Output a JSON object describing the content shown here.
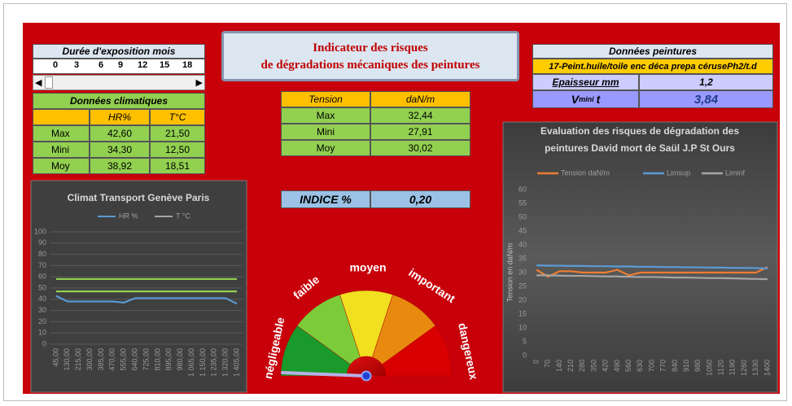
{
  "exposure": {
    "title": "Durée d'exposition mois",
    "ticks": [
      0,
      3,
      6,
      9,
      12,
      15,
      18
    ]
  },
  "climate": {
    "title": "Données climatiques",
    "headers": [
      "HR%",
      "T°C"
    ],
    "rows": [
      [
        "Max",
        "42,60",
        "21,50"
      ],
      [
        "Mini",
        "34,30",
        "12,50"
      ],
      [
        "Moy",
        "38,92",
        "18,51"
      ]
    ]
  },
  "header": {
    "line1": "Indicateur des risques",
    "line2": "de dégradations mécaniques des peintures"
  },
  "tension": {
    "headers": [
      "Tension",
      "daN/m"
    ],
    "rows": [
      [
        "Max",
        "32,44"
      ],
      [
        "Mini",
        "27,91"
      ],
      [
        "Moy",
        "30,02"
      ]
    ]
  },
  "indice": {
    "label": "INDICE %",
    "value": "0,20"
  },
  "gauge": {
    "labels": [
      "négligeable",
      "faible",
      "moyen",
      "important",
      "dangereux"
    ]
  },
  "paint": {
    "title": "Données peintures",
    "name": "17-Peint.huile/toile enc déca prepa cérusePh2/t.d",
    "thickness_label": "Epaisseur mm",
    "thickness": "1,2",
    "v_symbol": "V",
    "v_subscript": "mini",
    "v_suffix": "t",
    "v_value": "3,84"
  },
  "climate_chart": {
    "type": "line",
    "title": "Climat Transport Genève Paris",
    "categories": [
      "45,00",
      "130,00",
      "215,00",
      "300,00",
      "385,00",
      "470,00",
      "555,00",
      "640,00",
      "725,00",
      "810,00",
      "895,00",
      "980,00",
      "1 065,00",
      "1 150,00",
      "1 235,00",
      "1 320,00",
      "1 405,00"
    ],
    "series": [
      {
        "name": "HR %",
        "color": "#5b9bd5",
        "values": [
          43,
          38,
          38,
          38,
          38,
          38,
          37,
          41,
          41,
          41,
          41,
          41,
          41,
          41,
          41,
          41,
          36
        ]
      },
      {
        "name": "T °C",
        "color": "#a5a5a5",
        "values": [
          null,
          null,
          null,
          null,
          null,
          null,
          null,
          null,
          null,
          null,
          null,
          null,
          null,
          null,
          null,
          null,
          null
        ]
      },
      {
        "color": "#92d050",
        "values": [
          58,
          58,
          58,
          58,
          58,
          58,
          58,
          58,
          58,
          58,
          58,
          58,
          58,
          58,
          58,
          58,
          58
        ]
      },
      {
        "color": "#92d050",
        "values": [
          47,
          47,
          47,
          47,
          47,
          47,
          47,
          47,
          47,
          47,
          47,
          47,
          47,
          47,
          47,
          47,
          47
        ]
      }
    ],
    "ylim": [
      0,
      100
    ],
    "yticks": [
      0,
      10,
      20,
      30,
      40,
      50,
      60,
      70,
      80,
      90,
      100
    ],
    "grid": true
  },
  "tension_chart": {
    "type": "line",
    "title": [
      "Evaluation des risques de dégradation des",
      "peintures David mort de Saül J.P St Ours"
    ],
    "y_label": "Tension en daN/m",
    "categories": [
      0,
      70,
      140,
      210,
      280,
      350,
      420,
      490,
      560,
      630,
      700,
      770,
      840,
      910,
      980,
      1050,
      1120,
      1190,
      1260,
      1330,
      1400
    ],
    "series": [
      {
        "name": "Tension daN/m",
        "color": "#ed7d31",
        "values": [
          31,
          28.5,
          30.5,
          30.5,
          30,
          30,
          30,
          31,
          29,
          30,
          30,
          30,
          30,
          30,
          30,
          30,
          30,
          30,
          30,
          30,
          32
        ]
      },
      {
        "name": "Limsup",
        "color": "#5b9bd5",
        "values": [
          32.6,
          32.5,
          32.5,
          32.4,
          32.4,
          32.3,
          32.3,
          32.2,
          32.2,
          32.1,
          32.1,
          32,
          32,
          31.9,
          31.9,
          31.8,
          31.8,
          31.7,
          31.7,
          31.6,
          31.5
        ]
      },
      {
        "name": "Liminf",
        "color": "#a5a5a5",
        "values": [
          29,
          29,
          28.9,
          28.8,
          28.8,
          28.7,
          28.6,
          28.6,
          28.5,
          28.4,
          28.4,
          28.3,
          28.2,
          28.2,
          28.1,
          28,
          28,
          27.9,
          27.8,
          27.7,
          27.6
        ]
      }
    ],
    "ylim": [
      0,
      60
    ],
    "yticks": [
      0,
      5,
      10,
      15,
      20,
      25,
      30,
      35,
      40,
      45,
      50,
      55,
      60
    ],
    "grid": false
  }
}
